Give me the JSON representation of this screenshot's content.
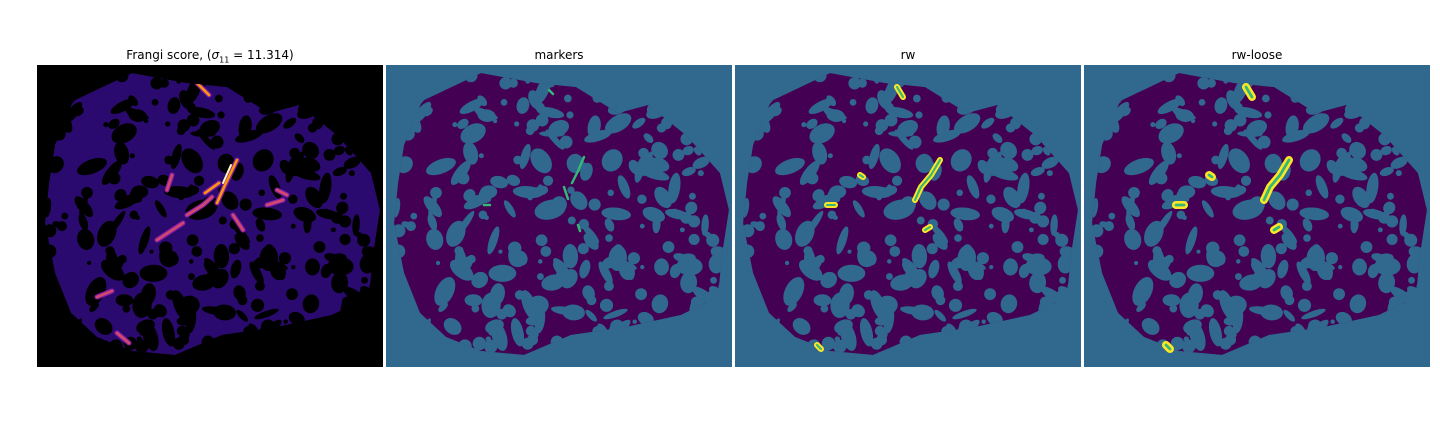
{
  "figure": {
    "panels": [
      {
        "id": "frangi",
        "title_prefix": "Frangi score, (",
        "title_sigma": "σ",
        "title_subscript": "11",
        "title_suffix": " = 11.314)",
        "colormap": "magma",
        "background_color": "#000000"
      },
      {
        "id": "markers",
        "title": "markers",
        "colormap": "viridis",
        "background_color": "#31688e"
      },
      {
        "id": "rw",
        "title": "rw",
        "colormap": "viridis",
        "background_color": "#31688e"
      },
      {
        "id": "rw-loose",
        "title": "rw-loose",
        "colormap": "viridis",
        "background_color": "#31688e"
      }
    ],
    "colors": {
      "tissue_dark": "#440154",
      "background_teal": "#31688e",
      "marker_green": "#35b779",
      "vessel_yellow": "#fde725",
      "frangi_low": "#2a0a6e",
      "frangi_mid": "#8e1ea5",
      "frangi_high": "#fcfdbf",
      "frangi_peak": "#fb9a06"
    }
  }
}
